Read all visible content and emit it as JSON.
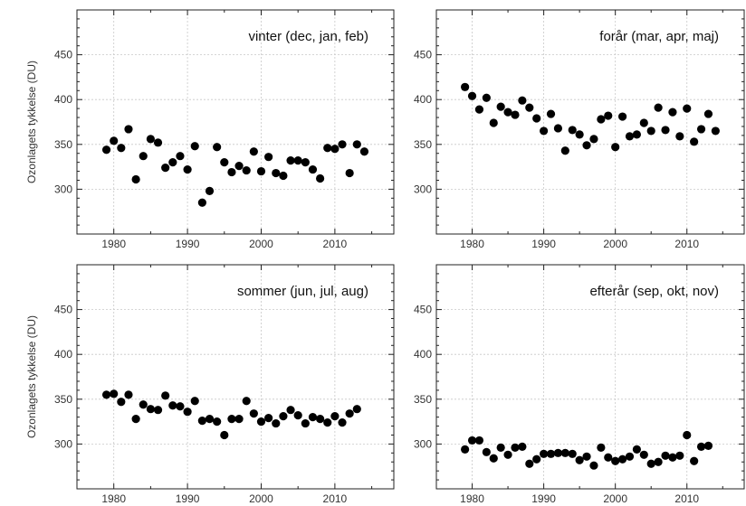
{
  "y_axis_label": "Ozonlagets tykkelse (DU)",
  "chart_data": [
    {
      "type": "scatter",
      "title": "vinter (dec, jan, feb)",
      "ylabel": "Ozonlagets tykkelse (DU)",
      "xlim": [
        1975,
        2018
      ],
      "ylim": [
        250,
        500
      ],
      "xticks": [
        1980,
        1990,
        2000,
        2010
      ],
      "yticks": [
        300,
        350,
        400,
        450
      ],
      "grid": true,
      "series": [
        {
          "x": [
            1979,
            1980,
            1981,
            1982,
            1983,
            1984,
            1985,
            1986,
            1987,
            1988,
            1989,
            1990,
            1991,
            1992,
            1993,
            1994,
            1995,
            1996,
            1997,
            1998,
            1999,
            2000,
            2001,
            2002,
            2003,
            2004,
            2005,
            2006,
            2007,
            2008,
            2009,
            2010,
            2011,
            2012,
            2013,
            2014
          ],
          "y": [
            344,
            354,
            346,
            367,
            311,
            337,
            356,
            352,
            324,
            330,
            337,
            322,
            348,
            285,
            298,
            347,
            330,
            319,
            326,
            321,
            342,
            320,
            336,
            318,
            315,
            332,
            332,
            330,
            322,
            312,
            346,
            345,
            350,
            318,
            350,
            342
          ]
        }
      ]
    },
    {
      "type": "scatter",
      "title": "forår (mar, apr, maj)",
      "ylabel": "",
      "xlim": [
        1975,
        2018
      ],
      "ylim": [
        250,
        500
      ],
      "xticks": [
        1980,
        1990,
        2000,
        2010
      ],
      "yticks": [
        300,
        350,
        400,
        450
      ],
      "grid": true,
      "series": [
        {
          "x": [
            1979,
            1980,
            1981,
            1982,
            1983,
            1984,
            1985,
            1986,
            1987,
            1988,
            1989,
            1990,
            1991,
            1992,
            1993,
            1994,
            1995,
            1996,
            1997,
            1998,
            1999,
            2000,
            2001,
            2002,
            2003,
            2004,
            2005,
            2006,
            2007,
            2008,
            2009,
            2010,
            2011,
            2012,
            2013,
            2014
          ],
          "y": [
            414,
            404,
            389,
            402,
            374,
            392,
            386,
            383,
            399,
            391,
            379,
            365,
            384,
            368,
            343,
            366,
            361,
            349,
            356,
            378,
            382,
            347,
            381,
            359,
            361,
            374,
            365,
            391,
            366,
            386,
            359,
            390,
            353,
            367,
            384,
            365
          ]
        }
      ]
    },
    {
      "type": "scatter",
      "title": "sommer (jun, jul, aug)",
      "ylabel": "Ozonlagets tykkelse (DU)",
      "xlim": [
        1975,
        2018
      ],
      "ylim": [
        250,
        500
      ],
      "xticks": [
        1980,
        1990,
        2000,
        2010
      ],
      "yticks": [
        300,
        350,
        400,
        450
      ],
      "grid": true,
      "series": [
        {
          "x": [
            1979,
            1980,
            1981,
            1982,
            1983,
            1984,
            1985,
            1986,
            1987,
            1988,
            1989,
            1990,
            1991,
            1992,
            1993,
            1994,
            1995,
            1996,
            1997,
            1998,
            1999,
            2000,
            2001,
            2002,
            2003,
            2004,
            2005,
            2006,
            2007,
            2008,
            2009,
            2010,
            2011,
            2012,
            2013
          ],
          "y": [
            355,
            356,
            347,
            355,
            328,
            344,
            339,
            338,
            354,
            343,
            342,
            336,
            348,
            326,
            328,
            325,
            310,
            328,
            328,
            348,
            334,
            325,
            329,
            323,
            331,
            338,
            332,
            323,
            330,
            328,
            324,
            331,
            324,
            334,
            339
          ]
        }
      ]
    },
    {
      "type": "scatter",
      "title": "efterår (sep, okt, nov)",
      "ylabel": "",
      "xlim": [
        1975,
        2018
      ],
      "ylim": [
        250,
        500
      ],
      "xticks": [
        1980,
        1990,
        2000,
        2010
      ],
      "yticks": [
        300,
        350,
        400,
        450
      ],
      "grid": true,
      "series": [
        {
          "x": [
            1979,
            1980,
            1981,
            1982,
            1983,
            1984,
            1985,
            1986,
            1987,
            1988,
            1989,
            1990,
            1991,
            1992,
            1993,
            1994,
            1995,
            1996,
            1997,
            1998,
            1999,
            2000,
            2001,
            2002,
            2003,
            2004,
            2005,
            2006,
            2007,
            2008,
            2009,
            2010,
            2011,
            2012,
            2013
          ],
          "y": [
            294,
            304,
            304,
            291,
            284,
            296,
            288,
            296,
            297,
            278,
            283,
            289,
            289,
            290,
            290,
            289,
            282,
            286,
            276,
            296,
            285,
            281,
            283,
            286,
            294,
            288,
            278,
            280,
            287,
            285,
            287,
            310,
            281,
            297,
            298
          ]
        }
      ]
    }
  ]
}
